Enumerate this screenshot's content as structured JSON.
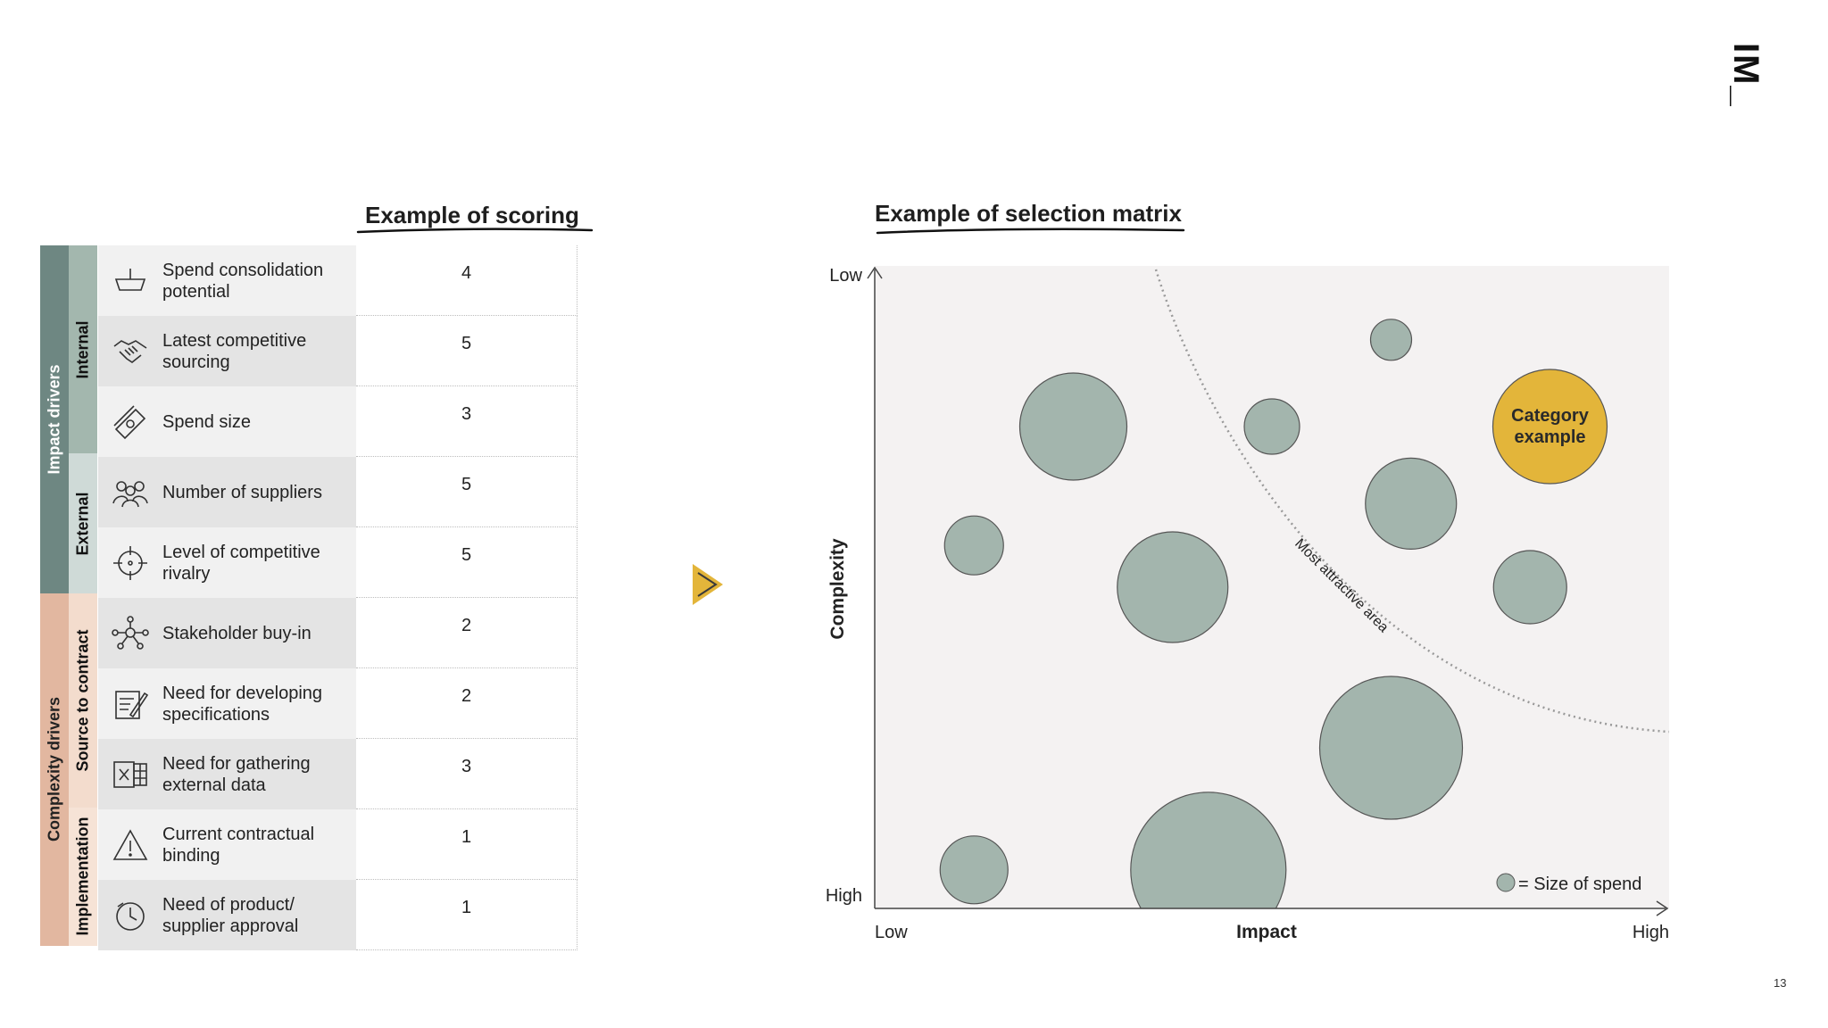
{
  "logo": "IM_",
  "page_number": "13",
  "scoring": {
    "title": "Example of scoring",
    "groups": [
      {
        "label": "Impact drivers",
        "color": "#6e8782"
      },
      {
        "label": "Complexity drivers",
        "color": "#e2b7a0"
      }
    ],
    "subgroups": [
      {
        "label": "Internal",
        "color": "#a3b7ae"
      },
      {
        "label": "External",
        "color": "#cfdad7"
      },
      {
        "label": "Source to contract",
        "color": "#f3dccd"
      },
      {
        "label": "Implementation",
        "color": "#f6e3d6"
      }
    ],
    "rows": [
      {
        "label": "Spend consolidation potential",
        "score": "4",
        "icon": "basket-icon"
      },
      {
        "label": "Latest competitive sourcing",
        "score": "5",
        "icon": "handshake-icon"
      },
      {
        "label": "Spend size",
        "score": "3",
        "icon": "money-icon"
      },
      {
        "label": "Number of suppliers",
        "score": "5",
        "icon": "people-icon"
      },
      {
        "label": "Level of competitive rivalry",
        "score": "5",
        "icon": "target-icon"
      },
      {
        "label": "Stakeholder buy-in",
        "score": "2",
        "icon": "network-icon"
      },
      {
        "label": "Need for developing specifications",
        "score": "2",
        "icon": "document-edit-icon"
      },
      {
        "label": "Need for gathering external data",
        "score": "3",
        "icon": "spreadsheet-icon"
      },
      {
        "label": "Current contractual binding",
        "score": "1",
        "icon": "warning-icon"
      },
      {
        "label": "Need of product/ supplier approval",
        "score": "1",
        "icon": "clock-icon"
      }
    ]
  },
  "arrow_color": "#e3b53a",
  "chart_data": {
    "type": "scatter",
    "title": "Example of selection matrix",
    "xlabel": "Impact",
    "ylabel": "Complexity",
    "x_low_label": "Low",
    "x_high_label": "High",
    "y_top_label": "Low",
    "y_bottom_label": "High",
    "xlim": [
      0,
      100
    ],
    "ylim": [
      0,
      100
    ],
    "curve_label": "Most attractive area",
    "legend": {
      "label": "= Size of spend",
      "position": "bottom-right"
    },
    "bubble_color": "#a3b5ad",
    "highlight_color": "#e3b53a",
    "bubbles": [
      {
        "x": 25,
        "y": 75,
        "size": 60
      },
      {
        "x": 12.5,
        "y": 56.5,
        "size": 33
      },
      {
        "x": 37.5,
        "y": 50,
        "size": 62
      },
      {
        "x": 50,
        "y": 75,
        "size": 31
      },
      {
        "x": 65,
        "y": 88.5,
        "size": 23
      },
      {
        "x": 67.5,
        "y": 63,
        "size": 51
      },
      {
        "x": 82.5,
        "y": 50,
        "size": 41
      },
      {
        "x": 65,
        "y": 25,
        "size": 80
      },
      {
        "x": 42,
        "y": 6,
        "size": 87
      },
      {
        "x": 12.5,
        "y": 6,
        "size": 38
      },
      {
        "x": 85,
        "y": 75,
        "size": 64,
        "label": "Category example",
        "highlight": true
      }
    ]
  }
}
